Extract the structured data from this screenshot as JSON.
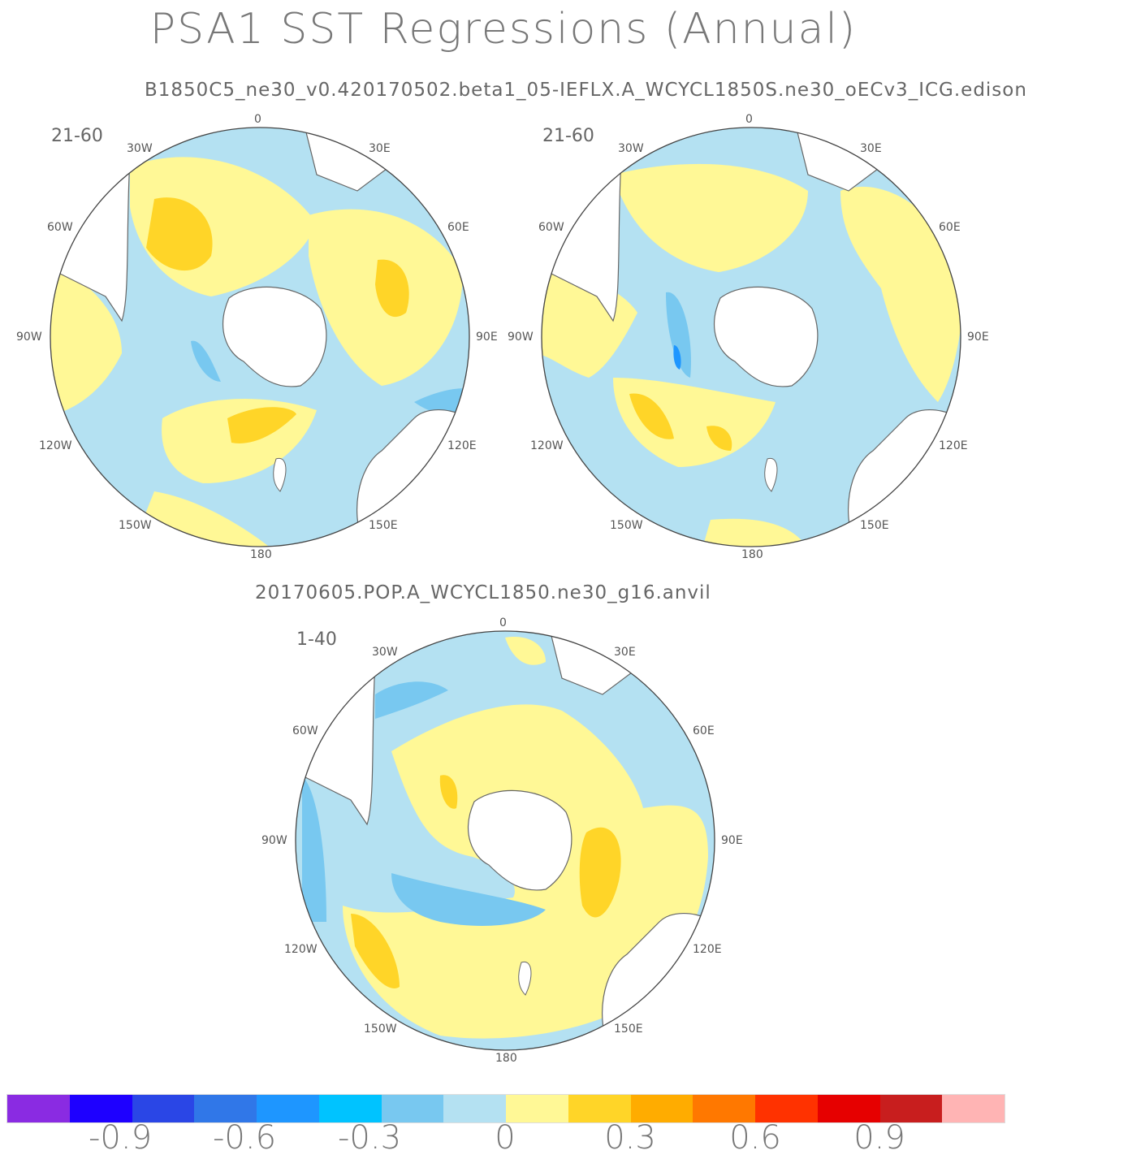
{
  "title": "PSA1 SST Regressions (Annual)",
  "top_subtitle": "B1850C5_ne30_v0.420170502.beta1_05-IEFLX.A_WCYCL1850S.ne30_oECv3_ICG.edison",
  "bottom_subtitle": "20170605.POP.A_WCYCL1850.ne30_g16.anvil",
  "lon_labels": [
    "0",
    "30E",
    "60E",
    "90E",
    "120E",
    "150E",
    "180",
    "150W",
    "120W",
    "90W",
    "60W",
    "30W"
  ],
  "panels": [
    {
      "years": "21-60"
    },
    {
      "years": "21-60"
    },
    {
      "years": "1-40"
    }
  ],
  "colorbar": {
    "colors": [
      "#8a2be2",
      "#1e00ff",
      "#2a46e6",
      "#3077e8",
      "#1e96ff",
      "#00c3ff",
      "#78c8f0",
      "#b4e1f2",
      "#fff896",
      "#ffd528",
      "#ffac00",
      "#ff7800",
      "#ff3200",
      "#e60000",
      "#c81e1e",
      "#ffb4b4"
    ],
    "labels": [
      "-0.9",
      "-0.6",
      "-0.3",
      "0",
      "0.3",
      "0.6",
      "0.9"
    ]
  }
}
